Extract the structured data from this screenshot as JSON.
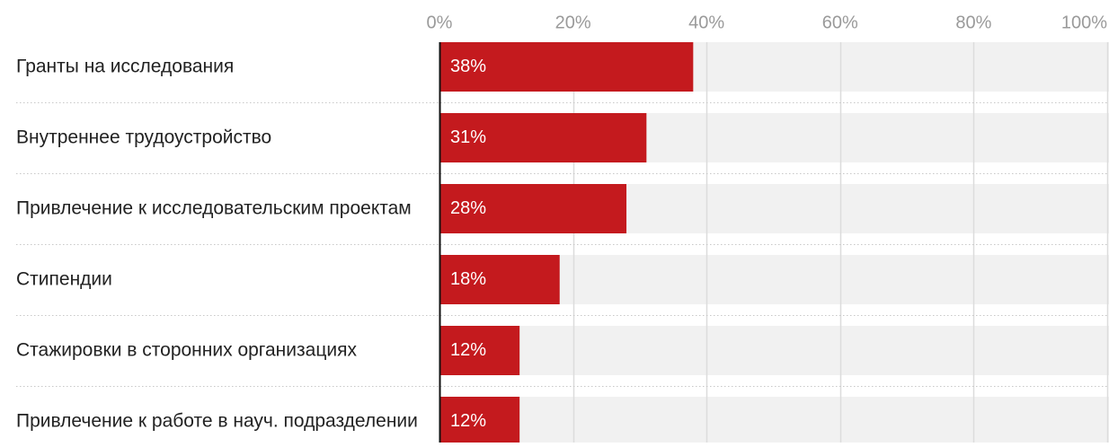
{
  "chart_data": {
    "type": "bar",
    "orientation": "horizontal",
    "title": "",
    "xlabel": "",
    "ylabel": "",
    "xlim": [
      0,
      100
    ],
    "unit": "%",
    "tick_values": [
      0,
      20,
      40,
      60,
      80,
      100
    ],
    "tick_labels": [
      "0%",
      "20%",
      "40%",
      "60%",
      "80%",
      "100%"
    ],
    "grid": true,
    "legend": "none",
    "categories": [
      "Гранты на исследования",
      "Внутреннее трудоустройство",
      "Привлечение к исследовательским проектам",
      "Стипендии",
      "Стажировки в сторонних организациях",
      "Привлечение к работе в науч. подразделении"
    ],
    "values": [
      38,
      31,
      28,
      18,
      12,
      12
    ],
    "value_labels": [
      "38%",
      "31%",
      "28%",
      "18%",
      "12%",
      "12%"
    ],
    "colors": {
      "bar": "#c41a1e",
      "track": "#f1f1f1",
      "gridline": "#dcdcdc",
      "axis": "#111111",
      "tick_text": "#9a9a9a",
      "category_text": "#222222",
      "value_text": "#ffffff",
      "separator": "#c8c8c8"
    }
  }
}
